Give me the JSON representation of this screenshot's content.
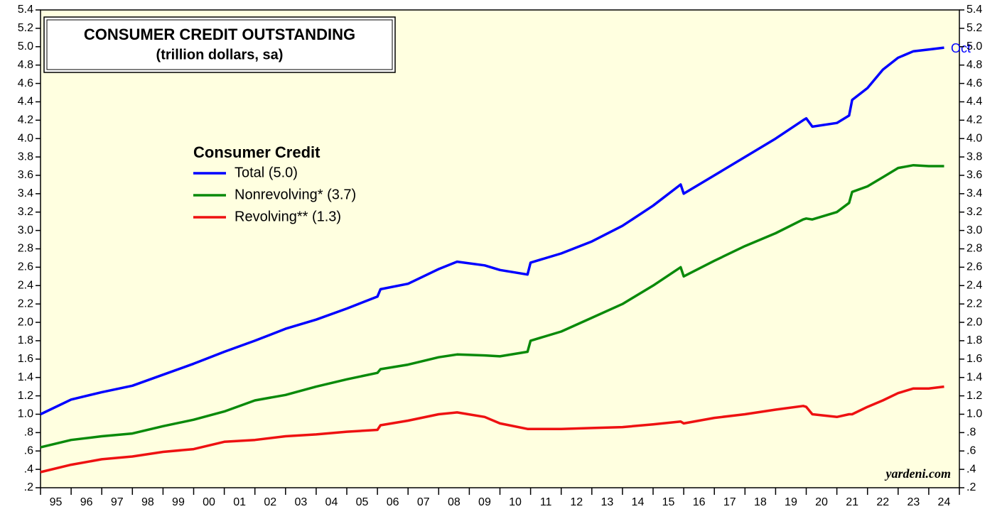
{
  "chart_data": {
    "type": "line",
    "title": "CONSUMER CREDIT OUTSTANDING",
    "subtitle": "(trillion dollars, sa)",
    "legend_title": "Consumer Credit",
    "legend": "upper left",
    "annotation": "Oct",
    "source": "yardeni.com",
    "background": "#ffffe0",
    "x": [
      1995,
      1996,
      1997,
      1998,
      1999,
      2000,
      2001,
      2002,
      2003,
      2004,
      2005,
      2006,
      2006.1,
      2007,
      2008,
      2008.6,
      2009.5,
      2010,
      2010.9,
      2011,
      2012,
      2013,
      2014,
      2015,
      2015.9,
      2016,
      2017,
      2018,
      2019,
      2019.9,
      2020,
      2020.2,
      2021,
      2021.4,
      2021.5,
      2022,
      2022.5,
      2023,
      2023.5,
      2024,
      2024.5
    ],
    "series": [
      {
        "name": "Total (5.0)",
        "color": "#0000ff",
        "values": [
          1.0,
          1.16,
          1.24,
          1.31,
          1.43,
          1.55,
          1.68,
          1.8,
          1.93,
          2.03,
          2.15,
          2.28,
          2.36,
          2.42,
          2.58,
          2.66,
          2.62,
          2.57,
          2.52,
          2.65,
          2.75,
          2.88,
          3.05,
          3.27,
          3.5,
          3.4,
          3.6,
          3.8,
          4.0,
          4.2,
          4.22,
          4.13,
          4.17,
          4.25,
          4.42,
          4.55,
          4.75,
          4.88,
          4.95,
          4.97,
          4.99
        ]
      },
      {
        "name": "Nonrevolving* (3.7)",
        "color": "#0a8a0a",
        "values": [
          0.64,
          0.72,
          0.76,
          0.79,
          0.87,
          0.94,
          1.03,
          1.15,
          1.21,
          1.3,
          1.38,
          1.45,
          1.49,
          1.54,
          1.62,
          1.65,
          1.64,
          1.63,
          1.68,
          1.8,
          1.9,
          2.05,
          2.2,
          2.4,
          2.6,
          2.5,
          2.67,
          2.83,
          2.97,
          3.12,
          3.13,
          3.12,
          3.2,
          3.3,
          3.42,
          3.48,
          3.58,
          3.68,
          3.71,
          3.7,
          3.7
        ]
      },
      {
        "name": "Revolving** (1.3)",
        "color": "#ee1111",
        "values": [
          0.37,
          0.45,
          0.51,
          0.54,
          0.59,
          0.62,
          0.7,
          0.72,
          0.76,
          0.78,
          0.81,
          0.83,
          0.88,
          0.93,
          1.0,
          1.02,
          0.97,
          0.9,
          0.84,
          0.84,
          0.84,
          0.85,
          0.86,
          0.89,
          0.92,
          0.9,
          0.96,
          1.0,
          1.05,
          1.09,
          1.08,
          1.0,
          0.97,
          1.0,
          1.0,
          1.08,
          1.15,
          1.23,
          1.28,
          1.28,
          1.3
        ]
      }
    ],
    "xlim": [
      1995,
      2025
    ],
    "xticks": [
      1995,
      1996,
      1997,
      1998,
      1999,
      2000,
      2001,
      2002,
      2003,
      2004,
      2005,
      2006,
      2007,
      2008,
      2009,
      2010,
      2011,
      2012,
      2013,
      2014,
      2015,
      2016,
      2017,
      2018,
      2019,
      2020,
      2021,
      2022,
      2023,
      2024,
      2025
    ],
    "xtick_labels": [
      {
        "value": 1995.5,
        "label": "95"
      },
      {
        "value": 1996.5,
        "label": "96"
      },
      {
        "value": 1997.5,
        "label": "97"
      },
      {
        "value": 1998.5,
        "label": "98"
      },
      {
        "value": 1999.5,
        "label": "99"
      },
      {
        "value": 2000.5,
        "label": "00"
      },
      {
        "value": 2001.5,
        "label": "01"
      },
      {
        "value": 2002.5,
        "label": "02"
      },
      {
        "value": 2003.5,
        "label": "03"
      },
      {
        "value": 2004.5,
        "label": "04"
      },
      {
        "value": 2005.5,
        "label": "05"
      },
      {
        "value": 2006.5,
        "label": "06"
      },
      {
        "value": 2007.5,
        "label": "07"
      },
      {
        "value": 2008.5,
        "label": "08"
      },
      {
        "value": 2009.5,
        "label": "09"
      },
      {
        "value": 2010.5,
        "label": "10"
      },
      {
        "value": 2011.5,
        "label": "11"
      },
      {
        "value": 2012.5,
        "label": "12"
      },
      {
        "value": 2013.5,
        "label": "13"
      },
      {
        "value": 2014.5,
        "label": "14"
      },
      {
        "value": 2015.5,
        "label": "15"
      },
      {
        "value": 2016.5,
        "label": "16"
      },
      {
        "value": 2017.5,
        "label": "17"
      },
      {
        "value": 2018.5,
        "label": "18"
      },
      {
        "value": 2019.5,
        "label": "19"
      },
      {
        "value": 2020.5,
        "label": "20"
      },
      {
        "value": 2021.5,
        "label": "21"
      },
      {
        "value": 2022.5,
        "label": "22"
      },
      {
        "value": 2023.5,
        "label": "23"
      },
      {
        "value": 2024.5,
        "label": "24"
      }
    ],
    "ylim": [
      0.2,
      5.4
    ],
    "yticks": [
      {
        "value": 0.2,
        "label": ".2"
      },
      {
        "value": 0.4,
        "label": ".4"
      },
      {
        "value": 0.6,
        "label": ".6"
      },
      {
        "value": 0.8,
        "label": ".8"
      },
      {
        "value": 1,
        "label": "1.0"
      },
      1.2,
      1.4,
      1.6,
      1.8,
      {
        "value": 2,
        "label": "2.0"
      },
      2.2,
      2.4,
      2.6,
      2.8,
      {
        "value": 3,
        "label": "3.0"
      },
      3.2,
      3.4,
      3.6,
      3.8,
      {
        "value": 4,
        "label": "4.0"
      },
      4.2,
      4.4,
      4.6,
      4.8,
      {
        "value": 5,
        "label": "5.0"
      },
      5.2,
      5.4
    ],
    "right_axis_ticks": true,
    "grid": false
  }
}
